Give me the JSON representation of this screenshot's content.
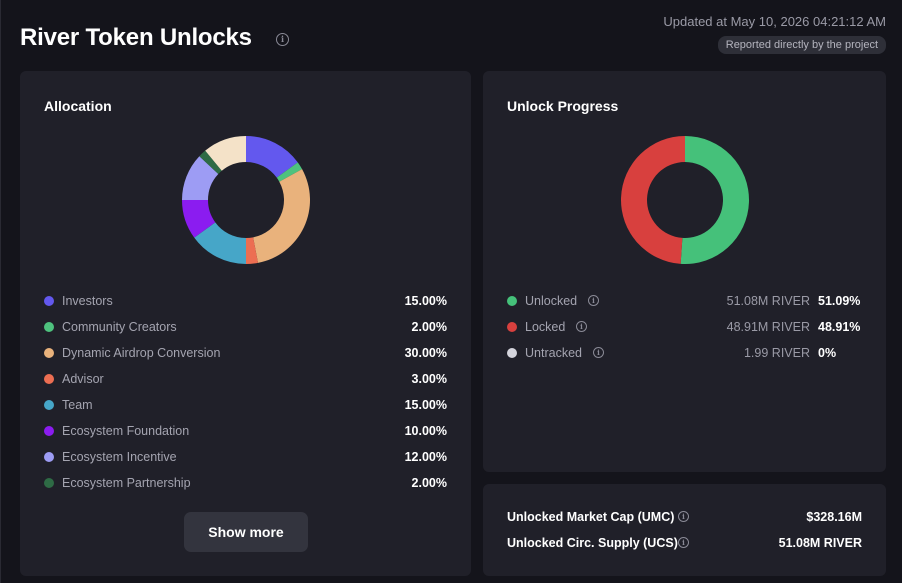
{
  "header": {
    "title": "River Token Unlocks",
    "updated": "Updated at May 10, 2026 04:21:12 AM",
    "reported_badge": "Reported directly by the project",
    "info_glyph": "i"
  },
  "allocation": {
    "title": "Allocation",
    "show_more": "Show more",
    "items": [
      {
        "label": "Investors",
        "value": "15.00%",
        "pct": 15,
        "color": "#6358ee"
      },
      {
        "label": "Community Creators",
        "value": "2.00%",
        "pct": 2,
        "color": "#4ec27e"
      },
      {
        "label": "Dynamic Airdrop Conversion",
        "value": "30.00%",
        "pct": 30,
        "color": "#e9b27c"
      },
      {
        "label": "Advisor",
        "value": "3.00%",
        "pct": 3,
        "color": "#ec6e52"
      },
      {
        "label": "Team",
        "value": "15.00%",
        "pct": 15,
        "color": "#46a6c8"
      },
      {
        "label": "Ecosystem Foundation",
        "value": "10.00%",
        "pct": 10,
        "color": "#8b1cf0"
      },
      {
        "label": "Ecosystem Incentive",
        "value": "12.00%",
        "pct": 12,
        "color": "#9d9cf4"
      },
      {
        "label": "Ecosystem Partnership",
        "value": "2.00%",
        "pct": 2,
        "color": "#2e6b45"
      }
    ],
    "unlisted_pct": 11,
    "unlisted_color": "#f4e2c8"
  },
  "unlock_progress": {
    "title": "Unlock Progress",
    "items": [
      {
        "label": "Unlocked",
        "amount": "51.08M RIVER",
        "value": "51.09%",
        "pct": 51.09,
        "color": "#45c17a"
      },
      {
        "label": "Locked",
        "amount": "48.91M RIVER",
        "value": "48.91%",
        "pct": 48.91,
        "color": "#d8403e"
      },
      {
        "label": "Untracked",
        "amount": "1.99 RIVER",
        "value": "0%",
        "pct": 0,
        "color": "#d4d4dc"
      }
    ]
  },
  "stats": {
    "umc_label": "Unlocked Market Cap (UMC)",
    "umc_value": "$328.16M",
    "ucs_label": "Unlocked Circ. Supply (UCS)",
    "ucs_value": "51.08M RIVER"
  }
}
